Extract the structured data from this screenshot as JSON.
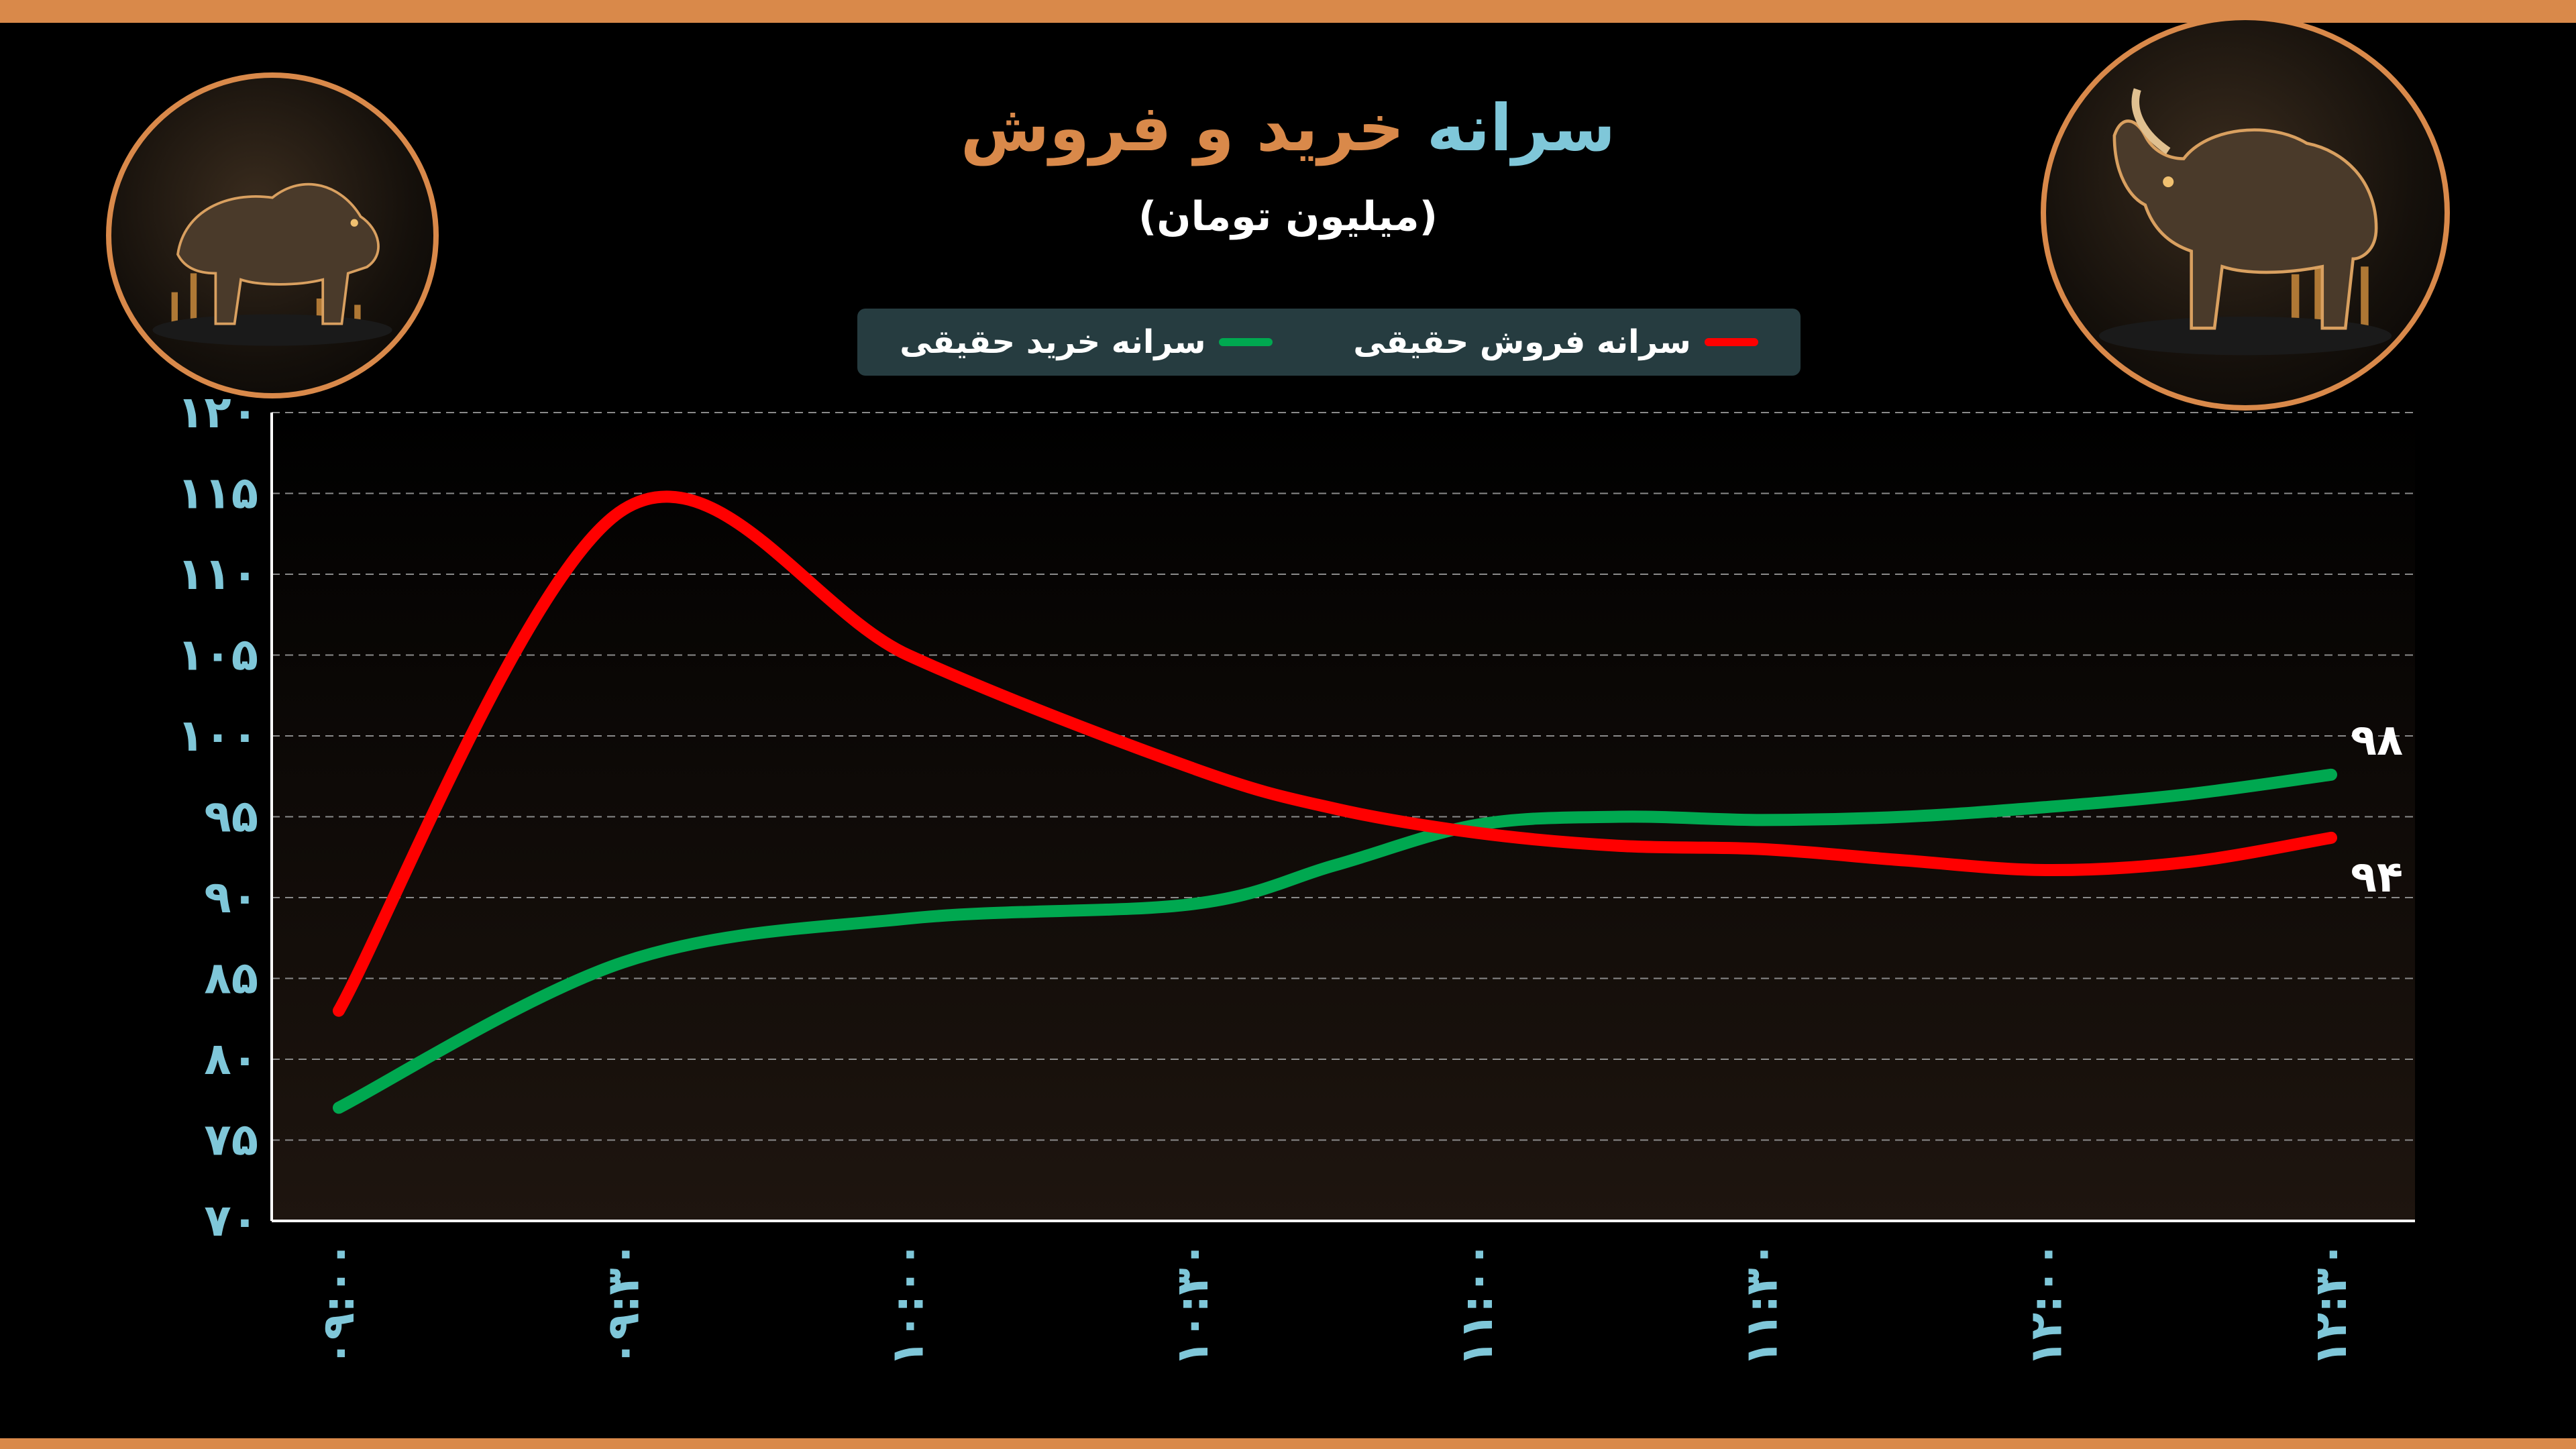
{
  "title": {
    "accent": "سرانه",
    "rest": "خرید و فروش"
  },
  "subtitle": "(میلیون تومان)",
  "colors": {
    "accent_orange": "#d9894a",
    "accent_blue": "#7fc7d9",
    "sell": "#ff0000",
    "buy": "#00a850",
    "legend_bg": "#263c40"
  },
  "icons": {
    "left": "bear-icon",
    "right": "bull-icon"
  },
  "chart_data": {
    "type": "line",
    "title": "سرانه خرید و فروش",
    "subtitle": "(میلیون تومان)",
    "categories": [
      "۰۹:۰۰",
      "۰۹:۳۰",
      "۱۰:۰۰",
      "۱۰:۳۰",
      "۱۱:۰۰",
      "۱۱:۳۰",
      "۱۲:۰۰",
      "۱۲:۳۰"
    ],
    "x_values": [
      0,
      1,
      2,
      3,
      4,
      5,
      6,
      7
    ],
    "series": [
      {
        "name": "سرانه فروش حقیقی",
        "color": "#ff0000",
        "points": [
          [
            0,
            83
          ],
          [
            1,
            114
          ],
          [
            2,
            105
          ],
          [
            3,
            98
          ],
          [
            3.5,
            95.5
          ],
          [
            4,
            94
          ],
          [
            4.5,
            93.2
          ],
          [
            5,
            93
          ],
          [
            5.5,
            92.3
          ],
          [
            6,
            91.7
          ],
          [
            6.5,
            92.2
          ],
          [
            7,
            93.7
          ]
        ],
        "end_label": "۹۴"
      },
      {
        "name": "سرانه خرید حقیقی",
        "color": "#00a850",
        "points": [
          [
            0,
            77
          ],
          [
            1,
            86
          ],
          [
            2,
            88.7
          ],
          [
            3,
            89.6
          ],
          [
            3.5,
            92
          ],
          [
            4,
            94.5
          ],
          [
            4.5,
            95
          ],
          [
            5,
            94.8
          ],
          [
            5.5,
            95
          ],
          [
            6,
            95.6
          ],
          [
            6.5,
            96.4
          ],
          [
            7,
            97.6
          ]
        ],
        "end_label": "۹۸"
      }
    ],
    "yticks": [
      {
        "v": 70,
        "label": "۷۰"
      },
      {
        "v": 75,
        "label": "۷۵"
      },
      {
        "v": 80,
        "label": "۸۰"
      },
      {
        "v": 85,
        "label": "۸۵"
      },
      {
        "v": 90,
        "label": "۹۰"
      },
      {
        "v": 95,
        "label": "۹۵"
      },
      {
        "v": 100,
        "label": "۱۰۰"
      },
      {
        "v": 105,
        "label": "۱۰۵"
      },
      {
        "v": 110,
        "label": "۱۱۰"
      },
      {
        "v": 115,
        "label": "۱۱۵"
      },
      {
        "v": 120,
        "label": "۱۲۰"
      }
    ],
    "ylim": [
      70,
      120
    ],
    "xlim": [
      0,
      7
    ],
    "grid": true,
    "legend_placement": "top-center"
  }
}
